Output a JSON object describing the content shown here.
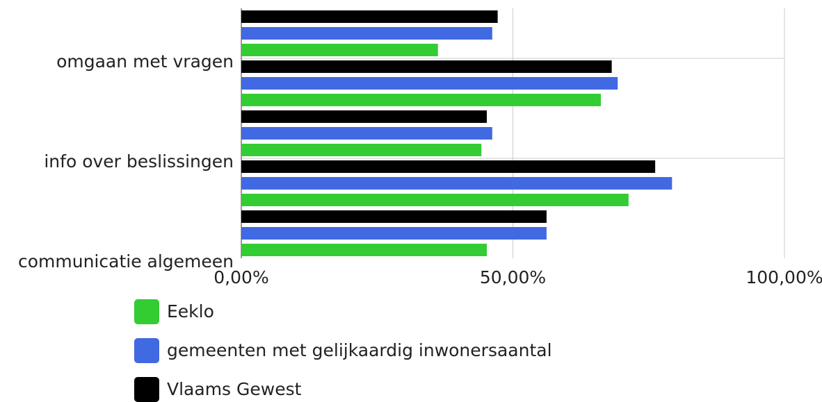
{
  "chart_data": {
    "type": "bar",
    "orientation": "horizontal",
    "categories": [
      "omgaan met vragen",
      null,
      "info over beslissingen",
      null,
      "communicatie algemeen"
    ],
    "series": [
      {
        "name": "Eeklo",
        "color": "#33cc33",
        "values": [
          36.2,
          66.2,
          44.2,
          71.3,
          45.2
        ]
      },
      {
        "name": "gemeenten met gelijkaardig inwonersaantal",
        "color": "#4169e1",
        "values": [
          46.2,
          69.3,
          46.2,
          79.3,
          56.2
        ]
      },
      {
        "name": "Vlaams Gewest",
        "color": "#000000",
        "values": [
          47.2,
          68.2,
          45.2,
          76.2,
          56.2
        ]
      }
    ],
    "xlim": [
      0,
      100
    ],
    "xticks": [
      {
        "value": 0,
        "label": "0,00%"
      },
      {
        "value": 50,
        "label": "50,00%"
      },
      {
        "value": 100,
        "label": "100,00%"
      }
    ],
    "grid": true,
    "legend": "bottom"
  }
}
